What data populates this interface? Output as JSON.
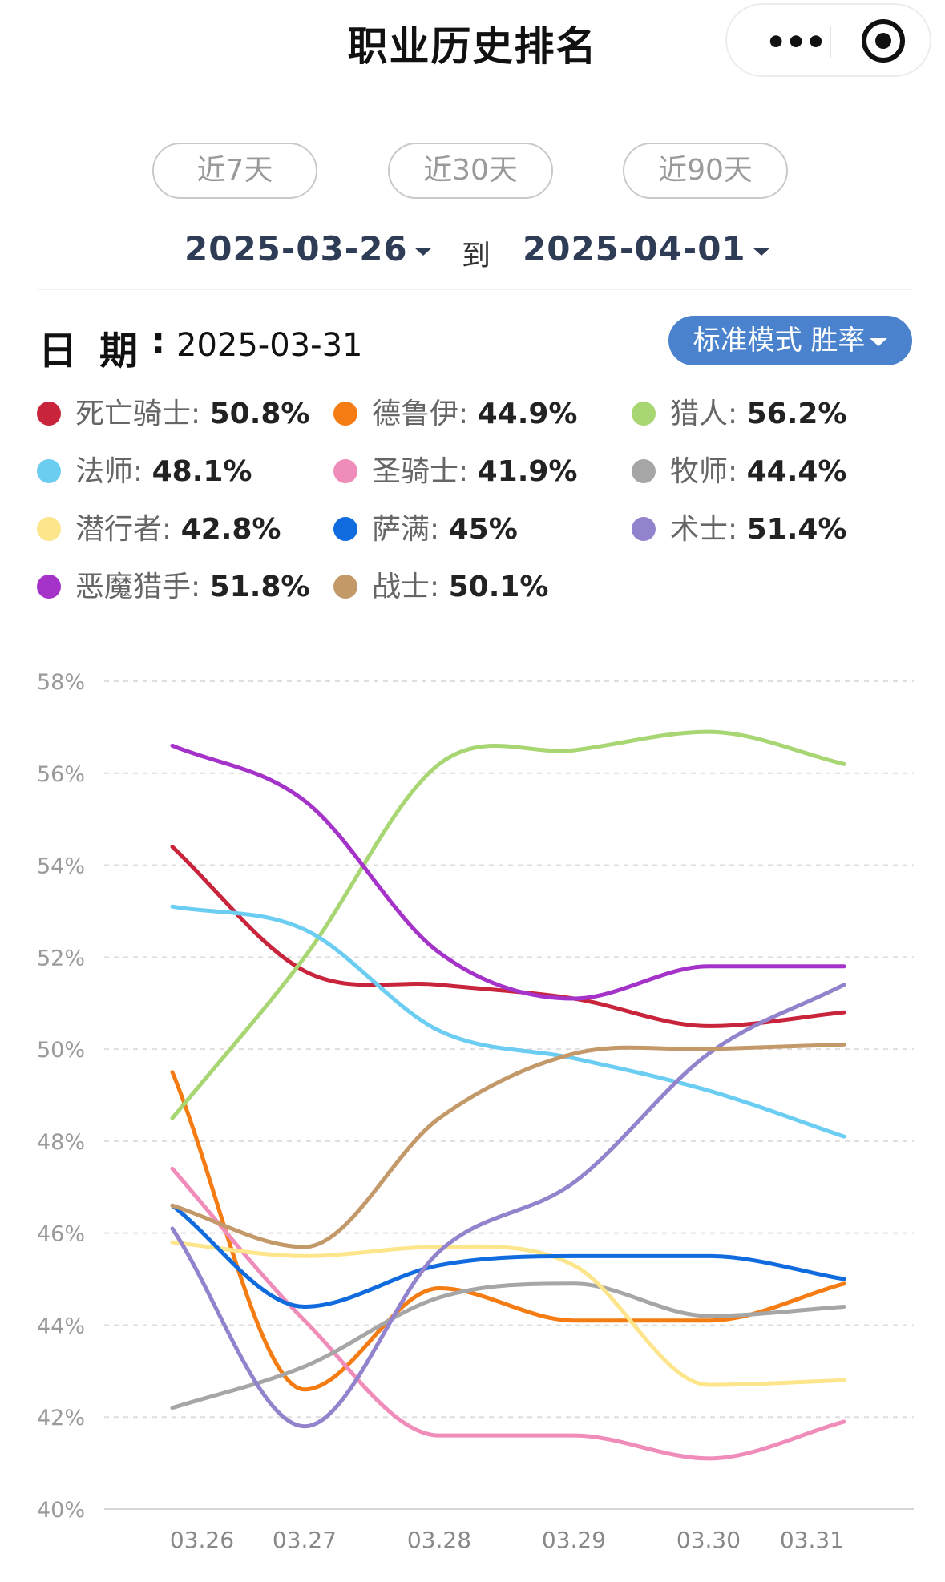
{
  "header": {
    "title": "职业历史排名"
  },
  "quick_ranges": [
    "近7天",
    "近30天",
    "近90天"
  ],
  "date_range": {
    "start": "2025-03-26",
    "separator": "到",
    "end": "2025-04-01"
  },
  "selected": {
    "label": "日期",
    "colon": ":",
    "date": "2025-03-31"
  },
  "mode": {
    "label": "标准模式 胜率"
  },
  "legend": [
    {
      "name": "死亡骑士",
      "value": "50.8%",
      "color": "#c8243c"
    },
    {
      "name": "德鲁伊",
      "value": "44.9%",
      "color": "#f47c12"
    },
    {
      "name": "猎人",
      "value": "56.2%",
      "color": "#a7d672"
    },
    {
      "name": "法师",
      "value": "48.1%",
      "color": "#6ccdf2"
    },
    {
      "name": "圣骑士",
      "value": "41.9%",
      "color": "#f08cba"
    },
    {
      "name": "牧师",
      "value": "44.4%",
      "color": "#a6a6a6"
    },
    {
      "name": "潜行者",
      "value": "42.8%",
      "color": "#fde58c"
    },
    {
      "name": "萨满",
      "value": "45%",
      "color": "#0f6bde"
    },
    {
      "name": "术士",
      "value": "51.4%",
      "color": "#9383cc"
    },
    {
      "name": "恶魔猎手",
      "value": "51.8%",
      "color": "#a633c9"
    },
    {
      "name": "战士",
      "value": "50.1%",
      "color": "#c4996a"
    }
  ],
  "chart_data": {
    "type": "line",
    "x": [
      "03.26",
      "03.27",
      "03.28",
      "03.29",
      "03.30",
      "03.31"
    ],
    "ylim": [
      40,
      58
    ],
    "yticks": [
      "40%",
      "42%",
      "44%",
      "46%",
      "48%",
      "50%",
      "52%",
      "54%",
      "56%",
      "58%"
    ],
    "grid": true,
    "series": [
      {
        "name": "死亡骑士",
        "color": "#c8243c",
        "values": [
          54.4,
          51.7,
          51.4,
          51.1,
          50.5,
          50.8
        ]
      },
      {
        "name": "德鲁伊",
        "color": "#f47c12",
        "values": [
          49.5,
          42.6,
          44.8,
          44.1,
          44.1,
          44.9
        ]
      },
      {
        "name": "猎人",
        "color": "#a7d672",
        "values": [
          48.5,
          52.0,
          56.2,
          56.5,
          56.9,
          56.2
        ]
      },
      {
        "name": "法师",
        "color": "#6ccdf2",
        "values": [
          53.1,
          52.6,
          50.4,
          49.8,
          49.1,
          48.1
        ]
      },
      {
        "name": "圣骑士",
        "color": "#f08cba",
        "values": [
          47.4,
          44.1,
          41.6,
          41.6,
          41.1,
          41.9
        ]
      },
      {
        "name": "牧师",
        "color": "#a6a6a6",
        "values": [
          42.2,
          43.1,
          44.6,
          44.9,
          44.2,
          44.4
        ]
      },
      {
        "name": "潜行者",
        "color": "#fde58c",
        "values": [
          45.8,
          45.5,
          45.7,
          45.3,
          42.7,
          42.8
        ]
      },
      {
        "name": "萨满",
        "color": "#0f6bde",
        "values": [
          46.6,
          44.4,
          45.3,
          45.5,
          45.5,
          45.0
        ]
      },
      {
        "name": "术士",
        "color": "#9383cc",
        "values": [
          46.1,
          41.8,
          45.6,
          47.1,
          49.9,
          51.4
        ]
      },
      {
        "name": "恶魔猎手",
        "color": "#a633c9",
        "values": [
          56.6,
          55.4,
          52.1,
          51.1,
          51.8,
          51.8
        ]
      },
      {
        "name": "战士",
        "color": "#c4996a",
        "values": [
          46.6,
          45.7,
          48.5,
          49.9,
          50.0,
          50.1
        ]
      }
    ]
  }
}
